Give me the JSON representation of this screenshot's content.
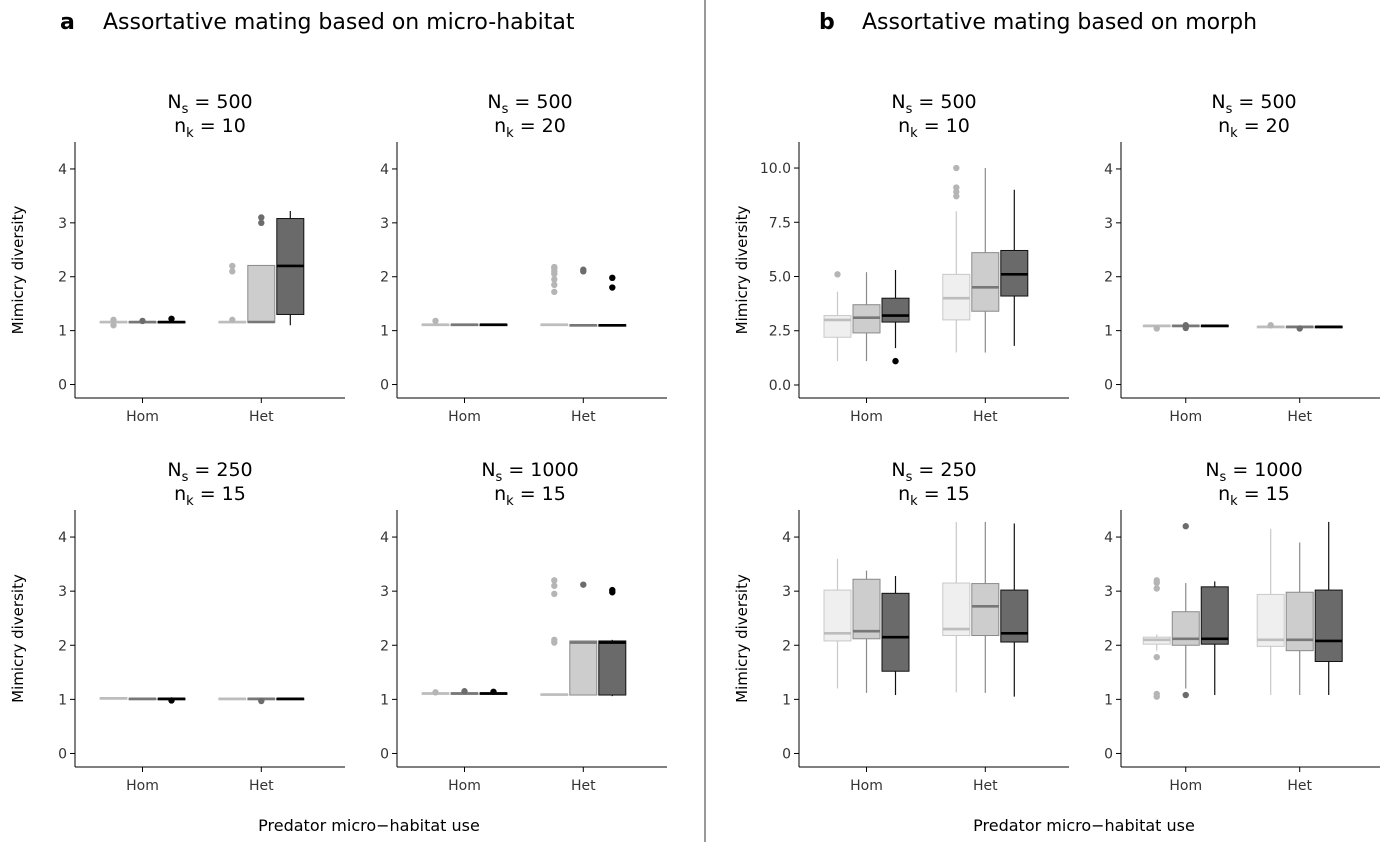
{
  "chart_data": [
    {
      "type": "boxplot",
      "section": "a",
      "section_title": "Assortative mating based on micro-habitat",
      "title_line1": "N",
      "title_sub1": "s",
      "title_rest1": " = 500",
      "title_line2": "n",
      "title_sub2": "k",
      "title_rest2": " = 10",
      "ylabel": "Mimicry diversity",
      "categories": [
        "Hom",
        "Het"
      ],
      "ylim": [
        -0.25,
        4.5
      ],
      "yticks": [
        0,
        1,
        2,
        3,
        4
      ],
      "ytick_labels": [
        "0",
        "1",
        "2",
        "3",
        "4"
      ],
      "groups": [
        [
          {
            "q1": 1.15,
            "med": 1.16,
            "q3": 1.17,
            "lo": 1.15,
            "hi": 1.17,
            "out": [
              1.1,
              1.2
            ]
          },
          {
            "q1": 1.15,
            "med": 1.16,
            "q3": 1.17,
            "lo": 1.15,
            "hi": 1.17,
            "out": [
              1.18
            ]
          },
          {
            "q1": 1.15,
            "med": 1.16,
            "q3": 1.17,
            "lo": 1.15,
            "hi": 1.17,
            "out": [
              1.22
            ]
          }
        ],
        [
          {
            "q1": 1.15,
            "med": 1.16,
            "q3": 1.17,
            "lo": 1.15,
            "hi": 1.17,
            "out": [
              1.2,
              2.1,
              2.2
            ]
          },
          {
            "q1": 1.15,
            "med": 1.16,
            "q3": 2.21,
            "lo": 1.15,
            "hi": 2.21,
            "out": [
              3.0,
              3.1
            ]
          },
          {
            "q1": 1.3,
            "med": 2.2,
            "q3": 3.08,
            "lo": 1.1,
            "hi": 3.22,
            "out": []
          }
        ]
      ]
    },
    {
      "type": "boxplot",
      "section": "a",
      "title_line1": "N",
      "title_sub1": "s",
      "title_rest1": " = 500",
      "title_line2": "n",
      "title_sub2": "k",
      "title_rest2": " = 20",
      "ylabel": "",
      "categories": [
        "Hom",
        "Het"
      ],
      "ylim": [
        -0.25,
        4.5
      ],
      "yticks": [
        0,
        1,
        2,
        3,
        4
      ],
      "ytick_labels": [
        "0",
        "1",
        "2",
        "3",
        "4"
      ],
      "groups": [
        [
          {
            "q1": 1.1,
            "med": 1.11,
            "q3": 1.12,
            "lo": 1.1,
            "hi": 1.12,
            "out": [
              1.18
            ]
          },
          {
            "q1": 1.1,
            "med": 1.11,
            "q3": 1.12,
            "lo": 1.1,
            "hi": 1.12,
            "out": []
          },
          {
            "q1": 1.1,
            "med": 1.11,
            "q3": 1.12,
            "lo": 1.1,
            "hi": 1.12,
            "out": []
          }
        ],
        [
          {
            "q1": 1.1,
            "med": 1.11,
            "q3": 1.12,
            "lo": 1.1,
            "hi": 1.12,
            "out": [
              1.72,
              1.85,
              1.95,
              2.05,
              2.1,
              2.15,
              2.18
            ]
          },
          {
            "q1": 1.09,
            "med": 1.1,
            "q3": 1.11,
            "lo": 1.09,
            "hi": 1.11,
            "out": [
              2.1,
              2.13
            ]
          },
          {
            "q1": 1.09,
            "med": 1.1,
            "q3": 1.11,
            "lo": 1.09,
            "hi": 1.11,
            "out": [
              1.8,
              1.98
            ]
          }
        ]
      ]
    },
    {
      "type": "boxplot",
      "section": "a",
      "title_line1": "N",
      "title_sub1": "s",
      "title_rest1": " = 250",
      "title_line2": "n",
      "title_sub2": "k",
      "title_rest2": " = 15",
      "ylabel": "Mimicry diversity",
      "categories": [
        "Hom",
        "Het"
      ],
      "ylim": [
        -0.25,
        4.5
      ],
      "yticks": [
        0,
        1,
        2,
        3,
        4
      ],
      "ytick_labels": [
        "0",
        "1",
        "2",
        "3",
        "4"
      ],
      "groups": [
        [
          {
            "q1": 1.01,
            "med": 1.02,
            "q3": 1.03,
            "lo": 1.01,
            "hi": 1.03,
            "out": []
          },
          {
            "q1": 1.0,
            "med": 1.01,
            "q3": 1.02,
            "lo": 1.0,
            "hi": 1.02,
            "out": []
          },
          {
            "q1": 1.0,
            "med": 1.01,
            "q3": 1.02,
            "lo": 1.0,
            "hi": 1.02,
            "out": [
              0.98
            ]
          }
        ],
        [
          {
            "q1": 1.0,
            "med": 1.01,
            "q3": 1.02,
            "lo": 1.0,
            "hi": 1.02,
            "out": []
          },
          {
            "q1": 1.0,
            "med": 1.01,
            "q3": 1.02,
            "lo": 1.0,
            "hi": 1.02,
            "out": [
              0.97
            ]
          },
          {
            "q1": 1.0,
            "med": 1.01,
            "q3": 1.02,
            "lo": 1.0,
            "hi": 1.02,
            "out": []
          }
        ]
      ]
    },
    {
      "type": "boxplot",
      "section": "a",
      "title_line1": "N",
      "title_sub1": "s",
      "title_rest1": " = 1000",
      "title_line2": "n",
      "title_sub2": "k",
      "title_rest2": " = 15",
      "ylabel": "",
      "categories": [
        "Hom",
        "Het"
      ],
      "ylim": [
        -0.25,
        4.5
      ],
      "yticks": [
        0,
        1,
        2,
        3,
        4
      ],
      "ytick_labels": [
        "0",
        "1",
        "2",
        "3",
        "4"
      ],
      "groups": [
        [
          {
            "q1": 1.1,
            "med": 1.11,
            "q3": 1.12,
            "lo": 1.1,
            "hi": 1.12,
            "out": [
              1.13
            ]
          },
          {
            "q1": 1.1,
            "med": 1.11,
            "q3": 1.12,
            "lo": 1.1,
            "hi": 1.12,
            "out": [
              1.15
            ]
          },
          {
            "q1": 1.1,
            "med": 1.11,
            "q3": 1.12,
            "lo": 1.1,
            "hi": 1.12,
            "out": [
              1.14
            ]
          }
        ],
        [
          {
            "q1": 1.08,
            "med": 1.09,
            "q3": 1.1,
            "lo": 1.08,
            "hi": 1.1,
            "out": [
              2.05,
              2.1,
              2.95,
              3.1,
              3.2
            ]
          },
          {
            "q1": 1.08,
            "med": 2.05,
            "q3": 2.08,
            "lo": 1.08,
            "hi": 2.08,
            "out": [
              3.12
            ]
          },
          {
            "q1": 1.08,
            "med": 2.05,
            "q3": 2.08,
            "lo": 1.06,
            "hi": 2.1,
            "out": [
              2.98,
              3.02
            ]
          }
        ]
      ]
    },
    {
      "type": "boxplot",
      "section": "b",
      "section_title": "Assortative mating based on morph",
      "title_line1": "N",
      "title_sub1": "s",
      "title_rest1": " = 500",
      "title_line2": "n",
      "title_sub2": "k",
      "title_rest2": " = 10",
      "ylabel": "Mimicry diversity",
      "categories": [
        "Hom",
        "Het"
      ],
      "ylim": [
        -0.6,
        11.2
      ],
      "yticks": [
        0,
        2.5,
        5,
        7.5,
        10
      ],
      "ytick_labels": [
        "0.0",
        "2.5",
        "5.0",
        "7.5",
        "10.0"
      ],
      "groups": [
        [
          {
            "q1": 2.2,
            "med": 3.0,
            "q3": 3.2,
            "lo": 1.1,
            "hi": 4.3,
            "out": [
              5.1
            ]
          },
          {
            "q1": 2.4,
            "med": 3.1,
            "q3": 3.7,
            "lo": 1.1,
            "hi": 5.2,
            "out": []
          },
          {
            "q1": 2.9,
            "med": 3.2,
            "q3": 4.0,
            "lo": 1.7,
            "hi": 5.3,
            "out": [
              1.1
            ]
          }
        ],
        [
          {
            "q1": 3.0,
            "med": 4.0,
            "q3": 5.1,
            "lo": 1.5,
            "hi": 8.0,
            "out": [
              8.7,
              8.9,
              9.1,
              10.0
            ]
          },
          {
            "q1": 3.4,
            "med": 4.5,
            "q3": 6.1,
            "lo": 1.5,
            "hi": 10.0,
            "out": []
          },
          {
            "q1": 4.1,
            "med": 5.1,
            "q3": 6.2,
            "lo": 1.8,
            "hi": 9.0,
            "out": []
          }
        ]
      ]
    },
    {
      "type": "boxplot",
      "section": "b",
      "title_line1": "N",
      "title_sub1": "s",
      "title_rest1": " = 500",
      "title_line2": "n",
      "title_sub2": "k",
      "title_rest2": " = 20",
      "ylabel": "",
      "categories": [
        "Hom",
        "Het"
      ],
      "ylim": [
        -0.25,
        4.5
      ],
      "yticks": [
        0,
        1,
        2,
        3,
        4
      ],
      "ytick_labels": [
        "0",
        "1",
        "2",
        "3",
        "4"
      ],
      "groups": [
        [
          {
            "q1": 1.08,
            "med": 1.09,
            "q3": 1.1,
            "lo": 1.08,
            "hi": 1.1,
            "out": [
              1.04
            ]
          },
          {
            "q1": 1.08,
            "med": 1.09,
            "q3": 1.1,
            "lo": 1.08,
            "hi": 1.1,
            "out": [
              1.05,
              1.1
            ]
          },
          {
            "q1": 1.08,
            "med": 1.09,
            "q3": 1.1,
            "lo": 1.08,
            "hi": 1.1,
            "out": []
          }
        ],
        [
          {
            "q1": 1.06,
            "med": 1.07,
            "q3": 1.08,
            "lo": 1.06,
            "hi": 1.08,
            "out": [
              1.1
            ]
          },
          {
            "q1": 1.06,
            "med": 1.07,
            "q3": 1.08,
            "lo": 1.06,
            "hi": 1.08,
            "out": [
              1.04
            ]
          },
          {
            "q1": 1.06,
            "med": 1.07,
            "q3": 1.08,
            "lo": 1.06,
            "hi": 1.08,
            "out": []
          }
        ]
      ]
    },
    {
      "type": "boxplot",
      "section": "b",
      "title_line1": "N",
      "title_sub1": "s",
      "title_rest1": " = 250",
      "title_line2": "n",
      "title_sub2": "k",
      "title_rest2": " = 15",
      "ylabel": "Mimicry diversity",
      "categories": [
        "Hom",
        "Het"
      ],
      "ylim": [
        -0.25,
        4.5
      ],
      "yticks": [
        0,
        1,
        2,
        3,
        4
      ],
      "ytick_labels": [
        "0",
        "1",
        "2",
        "3",
        "4"
      ],
      "groups": [
        [
          {
            "q1": 2.08,
            "med": 2.22,
            "q3": 3.02,
            "lo": 1.2,
            "hi": 3.6,
            "out": []
          },
          {
            "q1": 2.12,
            "med": 2.26,
            "q3": 3.22,
            "lo": 1.12,
            "hi": 3.38,
            "out": []
          },
          {
            "q1": 1.52,
            "med": 2.15,
            "q3": 2.96,
            "lo": 1.08,
            "hi": 3.28,
            "out": []
          }
        ],
        [
          {
            "q1": 2.18,
            "med": 2.3,
            "q3": 3.15,
            "lo": 1.13,
            "hi": 4.28,
            "out": []
          },
          {
            "q1": 2.18,
            "med": 2.72,
            "q3": 3.14,
            "lo": 1.12,
            "hi": 4.28,
            "out": []
          },
          {
            "q1": 2.06,
            "med": 2.22,
            "q3": 3.02,
            "lo": 1.05,
            "hi": 4.25,
            "out": []
          }
        ]
      ]
    },
    {
      "type": "boxplot",
      "section": "b",
      "title_line1": "N",
      "title_sub1": "s",
      "title_rest1": " = 1000",
      "title_line2": "n",
      "title_sub2": "k",
      "title_rest2": " = 15",
      "ylabel": "",
      "categories": [
        "Hom",
        "Het"
      ],
      "ylim": [
        -0.25,
        4.5
      ],
      "yticks": [
        0,
        1,
        2,
        3,
        4
      ],
      "ytick_labels": [
        "0",
        "1",
        "2",
        "3",
        "4"
      ],
      "groups": [
        [
          {
            "q1": 2.02,
            "med": 2.1,
            "q3": 2.15,
            "lo": 1.9,
            "hi": 2.2,
            "out": [
              1.05,
              1.1,
              1.78,
              3.05,
              3.15,
              3.2
            ]
          },
          {
            "q1": 2.0,
            "med": 2.12,
            "q3": 2.62,
            "lo": 1.2,
            "hi": 3.15,
            "out": [
              1.08,
              4.2
            ]
          },
          {
            "q1": 2.02,
            "med": 2.12,
            "q3": 3.08,
            "lo": 1.08,
            "hi": 3.18,
            "out": []
          }
        ],
        [
          {
            "q1": 1.98,
            "med": 2.1,
            "q3": 2.94,
            "lo": 1.08,
            "hi": 4.15,
            "out": []
          },
          {
            "q1": 1.9,
            "med": 2.1,
            "q3": 2.98,
            "lo": 1.08,
            "hi": 3.9,
            "out": []
          },
          {
            "q1": 1.7,
            "med": 2.08,
            "q3": 3.02,
            "lo": 1.08,
            "hi": 4.28,
            "out": []
          }
        ]
      ]
    }
  ],
  "series_style": [
    {
      "fill": "#efefef",
      "stroke": "#c8c8c8",
      "median": "#bdbdbd",
      "outlier": "#b5b5b5"
    },
    {
      "fill": "#cdcdcd",
      "stroke": "#8a8a8a",
      "median": "#777777",
      "outlier": "#6c6c6c"
    },
    {
      "fill": "#6a6a6a",
      "stroke": "#111111",
      "median": "#000000",
      "outlier": "#000000"
    }
  ],
  "panel_labels": [
    "a",
    "b"
  ],
  "panel_titles": [
    "Assortative mating based on micro-habitat",
    "Assortative mating based on morph"
  ],
  "xlabel": "Predator micro−habitat use"
}
